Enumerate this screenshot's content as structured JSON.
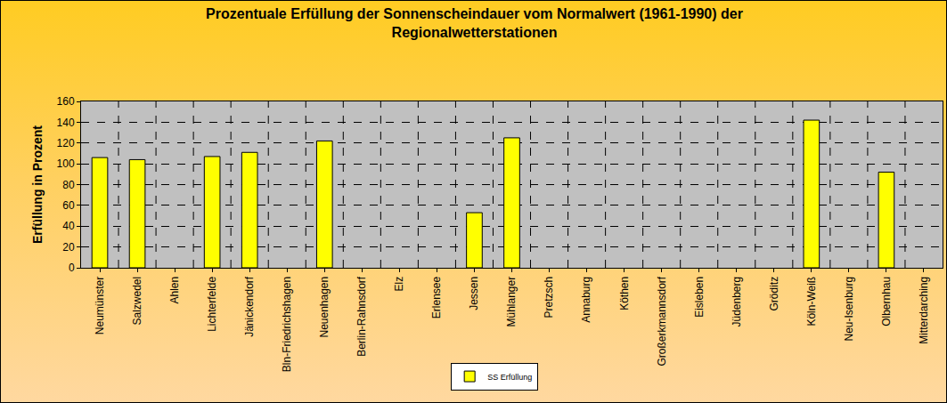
{
  "chart_data": {
    "type": "bar",
    "title": "Prozentuale Erfüllung der Sonnenscheindauer vom Normalwert (1961-1990) der Regionalwetterstationen",
    "y_label": "Erfüllung in Prozent",
    "categories": [
      "Neumünster",
      "Salzwedel",
      "Ahlen",
      "Lichterfelde",
      "Jänickendorf",
      "Bln-Friedrichshagen",
      "Neuenhagen",
      "Berlin-Rahnsdorf",
      "Elz",
      "Erlensee",
      "Jessen",
      "Mühlanger",
      "Pretzsch",
      "Annaburg",
      "Köthen",
      "Großerkmannsdorf",
      "Eisleben",
      "Jüdenberg",
      "Gröditz",
      "Köln-Weiß",
      "Neu-Isenburg",
      "Olbernhau",
      "Mitterdarching"
    ],
    "series": [
      {
        "name": "SS Erfüllung",
        "color": "#FFFF00",
        "values": [
          106,
          104,
          null,
          107,
          111,
          null,
          122,
          null,
          null,
          null,
          53,
          125,
          null,
          null,
          null,
          null,
          null,
          null,
          null,
          142,
          null,
          92,
          null
        ]
      }
    ],
    "ylim": [
      0,
      160
    ],
    "yticks": [
      0,
      20,
      40,
      60,
      80,
      100,
      120,
      140,
      160
    ],
    "grid": true,
    "legend": "bottom"
  }
}
